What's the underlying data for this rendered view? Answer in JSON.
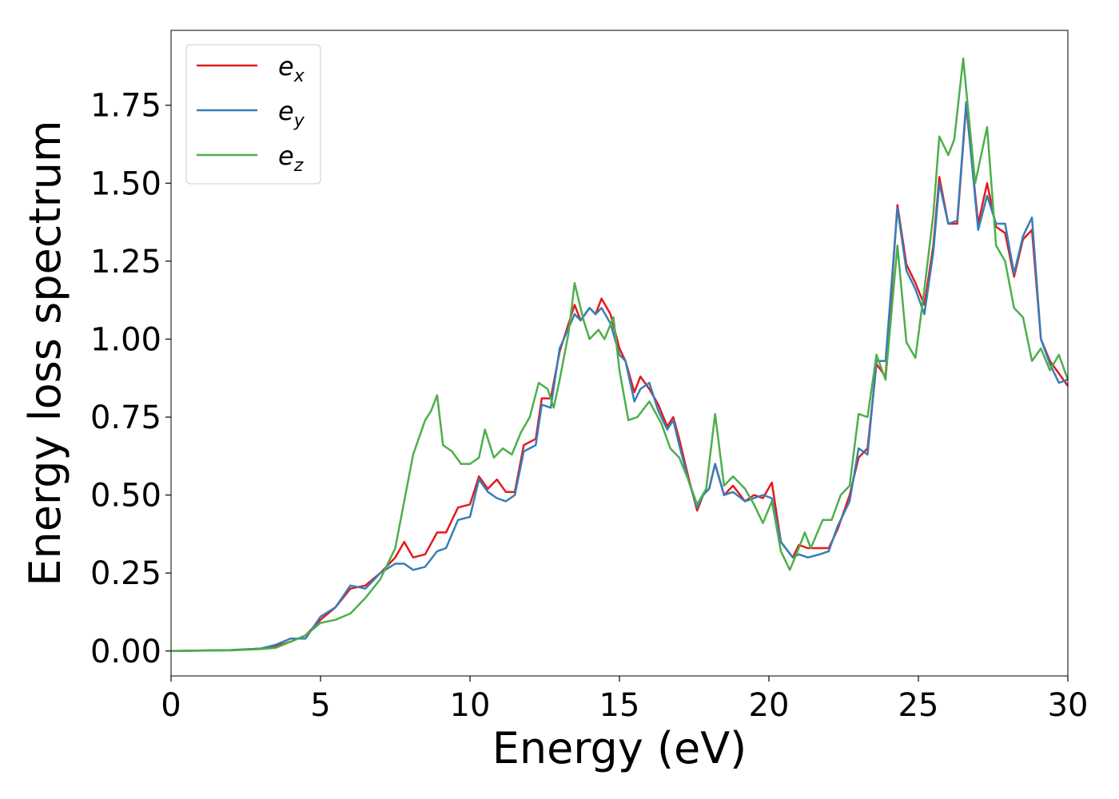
{
  "chart_data": {
    "type": "line",
    "xlabel": "Energy (eV)",
    "ylabel": "Energy loss spectrum",
    "xlim": [
      0,
      30
    ],
    "ylim": [
      -0.08,
      1.99
    ],
    "xticks": [
      0,
      5,
      10,
      15,
      20,
      25,
      30
    ],
    "xtick_labels": [
      "0",
      "5",
      "10",
      "15",
      "20",
      "25",
      "30"
    ],
    "yticks": [
      0,
      0.25,
      0.5,
      0.75,
      1.0,
      1.25,
      1.5,
      1.75
    ],
    "ytick_labels": [
      "0.00",
      "0.25",
      "0.50",
      "0.75",
      "1.00",
      "1.25",
      "1.50",
      "1.75"
    ],
    "grid": false,
    "legend_position": "top-left",
    "series": [
      {
        "name": "e_x",
        "label_base": "e",
        "label_sub": "x",
        "color": "#e41a1c",
        "points": [
          [
            0,
            0
          ],
          [
            2,
            0.003
          ],
          [
            3,
            0.008
          ],
          [
            3.5,
            0.015
          ],
          [
            4,
            0.03
          ],
          [
            4.5,
            0.05
          ],
          [
            5,
            0.1
          ],
          [
            5.5,
            0.14
          ],
          [
            6,
            0.2
          ],
          [
            6.5,
            0.21
          ],
          [
            7,
            0.25
          ],
          [
            7.5,
            0.3
          ],
          [
            7.8,
            0.35
          ],
          [
            8.1,
            0.3
          ],
          [
            8.5,
            0.31
          ],
          [
            8.9,
            0.38
          ],
          [
            9.2,
            0.38
          ],
          [
            9.6,
            0.46
          ],
          [
            10,
            0.47
          ],
          [
            10.3,
            0.56
          ],
          [
            10.6,
            0.52
          ],
          [
            10.9,
            0.55
          ],
          [
            11.2,
            0.51
          ],
          [
            11.5,
            0.51
          ],
          [
            11.8,
            0.66
          ],
          [
            12.2,
            0.68
          ],
          [
            12.4,
            0.81
          ],
          [
            12.7,
            0.81
          ],
          [
            13,
            0.96
          ],
          [
            13.5,
            1.11
          ],
          [
            13.7,
            1.06
          ],
          [
            14,
            1.1
          ],
          [
            14.2,
            1.08
          ],
          [
            14.4,
            1.13
          ],
          [
            14.7,
            1.08
          ],
          [
            15,
            0.97
          ],
          [
            15.2,
            0.93
          ],
          [
            15.5,
            0.83
          ],
          [
            15.7,
            0.88
          ],
          [
            16,
            0.84
          ],
          [
            16.3,
            0.79
          ],
          [
            16.6,
            0.72
          ],
          [
            16.8,
            0.75
          ],
          [
            17,
            0.68
          ],
          [
            17.3,
            0.56
          ],
          [
            17.6,
            0.45
          ],
          [
            17.8,
            0.5
          ],
          [
            18,
            0.52
          ],
          [
            18.2,
            0.6
          ],
          [
            18.5,
            0.5
          ],
          [
            18.8,
            0.53
          ],
          [
            19.2,
            0.48
          ],
          [
            19.5,
            0.5
          ],
          [
            19.8,
            0.49
          ],
          [
            20.1,
            0.54
          ],
          [
            20.4,
            0.35
          ],
          [
            20.8,
            0.3
          ],
          [
            21,
            0.34
          ],
          [
            21.3,
            0.33
          ],
          [
            21.7,
            0.33
          ],
          [
            22,
            0.33
          ],
          [
            22.3,
            0.39
          ],
          [
            22.7,
            0.5
          ],
          [
            23,
            0.62
          ],
          [
            23.3,
            0.65
          ],
          [
            23.6,
            0.92
          ],
          [
            23.9,
            0.88
          ],
          [
            24.3,
            1.43
          ],
          [
            24.6,
            1.24
          ],
          [
            24.9,
            1.18
          ],
          [
            25.2,
            1.11
          ],
          [
            25.5,
            1.3
          ],
          [
            25.7,
            1.52
          ],
          [
            26,
            1.37
          ],
          [
            26.3,
            1.37
          ],
          [
            26.6,
            1.75
          ],
          [
            27,
            1.37
          ],
          [
            27.3,
            1.5
          ],
          [
            27.6,
            1.36
          ],
          [
            27.9,
            1.34
          ],
          [
            28.2,
            1.2
          ],
          [
            28.5,
            1.32
          ],
          [
            28.8,
            1.35
          ],
          [
            29.1,
            1.0
          ],
          [
            29.4,
            0.93
          ],
          [
            29.7,
            0.89
          ],
          [
            30,
            0.85
          ]
        ]
      },
      {
        "name": "e_y",
        "label_base": "e",
        "label_sub": "y",
        "color": "#377eb8",
        "points": [
          [
            0,
            0
          ],
          [
            2,
            0.003
          ],
          [
            3,
            0.008
          ],
          [
            3.5,
            0.02
          ],
          [
            4,
            0.04
          ],
          [
            4.5,
            0.04
          ],
          [
            5,
            0.11
          ],
          [
            5.5,
            0.14
          ],
          [
            6,
            0.21
          ],
          [
            6.5,
            0.2
          ],
          [
            7,
            0.25
          ],
          [
            7.5,
            0.28
          ],
          [
            7.8,
            0.28
          ],
          [
            8.1,
            0.26
          ],
          [
            8.5,
            0.27
          ],
          [
            8.9,
            0.32
          ],
          [
            9.2,
            0.33
          ],
          [
            9.6,
            0.42
          ],
          [
            10,
            0.43
          ],
          [
            10.3,
            0.55
          ],
          [
            10.6,
            0.51
          ],
          [
            10.9,
            0.49
          ],
          [
            11.2,
            0.48
          ],
          [
            11.5,
            0.5
          ],
          [
            11.8,
            0.64
          ],
          [
            12.2,
            0.66
          ],
          [
            12.4,
            0.79
          ],
          [
            12.7,
            0.78
          ],
          [
            13,
            0.97
          ],
          [
            13.5,
            1.08
          ],
          [
            13.7,
            1.06
          ],
          [
            14,
            1.1
          ],
          [
            14.2,
            1.08
          ],
          [
            14.4,
            1.1
          ],
          [
            14.7,
            1.05
          ],
          [
            15,
            0.95
          ],
          [
            15.2,
            0.93
          ],
          [
            15.5,
            0.8
          ],
          [
            15.7,
            0.84
          ],
          [
            16,
            0.86
          ],
          [
            16.3,
            0.77
          ],
          [
            16.6,
            0.71
          ],
          [
            16.8,
            0.74
          ],
          [
            17,
            0.66
          ],
          [
            17.3,
            0.55
          ],
          [
            17.6,
            0.46
          ],
          [
            17.8,
            0.5
          ],
          [
            18,
            0.52
          ],
          [
            18.2,
            0.6
          ],
          [
            18.5,
            0.5
          ],
          [
            18.8,
            0.51
          ],
          [
            19.2,
            0.48
          ],
          [
            19.5,
            0.49
          ],
          [
            19.8,
            0.5
          ],
          [
            20.1,
            0.49
          ],
          [
            20.4,
            0.35
          ],
          [
            20.8,
            0.3
          ],
          [
            21,
            0.31
          ],
          [
            21.3,
            0.3
          ],
          [
            21.7,
            0.31
          ],
          [
            22,
            0.32
          ],
          [
            22.3,
            0.4
          ],
          [
            22.7,
            0.48
          ],
          [
            23,
            0.65
          ],
          [
            23.3,
            0.63
          ],
          [
            23.6,
            0.93
          ],
          [
            23.9,
            0.93
          ],
          [
            24.3,
            1.42
          ],
          [
            24.6,
            1.22
          ],
          [
            24.9,
            1.16
          ],
          [
            25.2,
            1.08
          ],
          [
            25.5,
            1.28
          ],
          [
            25.7,
            1.5
          ],
          [
            26,
            1.37
          ],
          [
            26.3,
            1.38
          ],
          [
            26.6,
            1.76
          ],
          [
            27,
            1.35
          ],
          [
            27.3,
            1.46
          ],
          [
            27.6,
            1.37
          ],
          [
            27.9,
            1.37
          ],
          [
            28.2,
            1.21
          ],
          [
            28.5,
            1.33
          ],
          [
            28.8,
            1.39
          ],
          [
            29.1,
            1.0
          ],
          [
            29.4,
            0.92
          ],
          [
            29.7,
            0.86
          ],
          [
            30,
            0.87
          ]
        ]
      },
      {
        "name": "e_z",
        "label_base": "e",
        "label_sub": "z",
        "color": "#4daf4a",
        "points": [
          [
            0,
            0
          ],
          [
            2,
            0.002
          ],
          [
            3,
            0.006
          ],
          [
            3.5,
            0.01
          ],
          [
            4,
            0.03
          ],
          [
            4.5,
            0.05
          ],
          [
            5,
            0.09
          ],
          [
            5.5,
            0.1
          ],
          [
            6,
            0.12
          ],
          [
            6.5,
            0.17
          ],
          [
            7,
            0.23
          ],
          [
            7.5,
            0.33
          ],
          [
            7.8,
            0.48
          ],
          [
            8.1,
            0.63
          ],
          [
            8.5,
            0.74
          ],
          [
            8.7,
            0.77
          ],
          [
            8.9,
            0.82
          ],
          [
            9.1,
            0.66
          ],
          [
            9.4,
            0.64
          ],
          [
            9.7,
            0.6
          ],
          [
            10,
            0.6
          ],
          [
            10.3,
            0.62
          ],
          [
            10.5,
            0.71
          ],
          [
            10.8,
            0.62
          ],
          [
            11.1,
            0.65
          ],
          [
            11.4,
            0.63
          ],
          [
            11.7,
            0.7
          ],
          [
            12.0,
            0.75
          ],
          [
            12.3,
            0.86
          ],
          [
            12.6,
            0.84
          ],
          [
            12.8,
            0.78
          ],
          [
            13,
            0.87
          ],
          [
            13.3,
            1.02
          ],
          [
            13.5,
            1.18
          ],
          [
            13.8,
            1.06
          ],
          [
            14,
            1.0
          ],
          [
            14.3,
            1.03
          ],
          [
            14.5,
            1.0
          ],
          [
            14.8,
            1.07
          ],
          [
            15,
            0.9
          ],
          [
            15.3,
            0.74
          ],
          [
            15.6,
            0.75
          ],
          [
            16,
            0.8
          ],
          [
            16.4,
            0.73
          ],
          [
            16.7,
            0.65
          ],
          [
            17,
            0.62
          ],
          [
            17.3,
            0.55
          ],
          [
            17.6,
            0.47
          ],
          [
            17.9,
            0.52
          ],
          [
            18.2,
            0.76
          ],
          [
            18.5,
            0.53
          ],
          [
            18.8,
            0.56
          ],
          [
            19.2,
            0.52
          ],
          [
            19.5,
            0.47
          ],
          [
            19.8,
            0.41
          ],
          [
            20.1,
            0.48
          ],
          [
            20.4,
            0.32
          ],
          [
            20.7,
            0.26
          ],
          [
            21,
            0.33
          ],
          [
            21.2,
            0.38
          ],
          [
            21.4,
            0.33
          ],
          [
            21.8,
            0.42
          ],
          [
            22.1,
            0.42
          ],
          [
            22.4,
            0.5
          ],
          [
            22.7,
            0.53
          ],
          [
            23,
            0.76
          ],
          [
            23.3,
            0.75
          ],
          [
            23.6,
            0.95
          ],
          [
            23.9,
            0.87
          ],
          [
            24.3,
            1.3
          ],
          [
            24.6,
            0.99
          ],
          [
            24.9,
            0.94
          ],
          [
            25.2,
            1.16
          ],
          [
            25.5,
            1.4
          ],
          [
            25.7,
            1.65
          ],
          [
            26,
            1.59
          ],
          [
            26.2,
            1.64
          ],
          [
            26.5,
            1.9
          ],
          [
            26.9,
            1.5
          ],
          [
            27.3,
            1.68
          ],
          [
            27.6,
            1.3
          ],
          [
            27.9,
            1.25
          ],
          [
            28.2,
            1.1
          ],
          [
            28.5,
            1.07
          ],
          [
            28.8,
            0.93
          ],
          [
            29.1,
            0.97
          ],
          [
            29.4,
            0.9
          ],
          [
            29.7,
            0.95
          ],
          [
            30,
            0.87
          ]
        ]
      }
    ]
  }
}
